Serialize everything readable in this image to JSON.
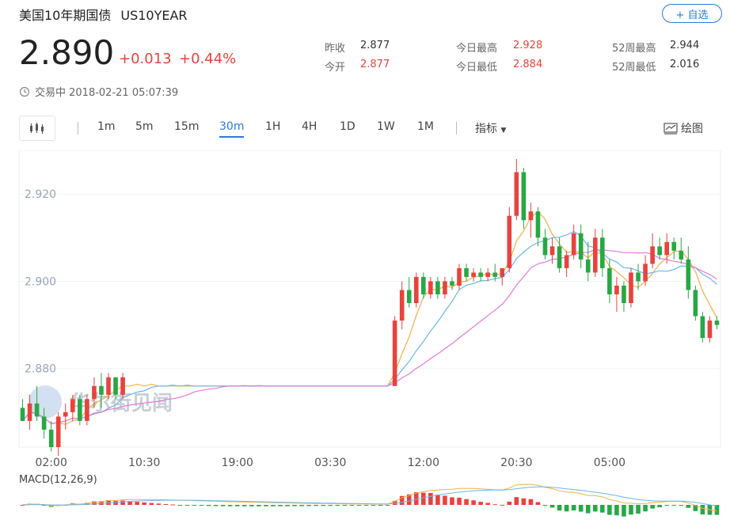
{
  "header": {
    "name": "美国10年期国债",
    "code": "US10YEAR",
    "add_label": "+ 自选",
    "price": "2.890",
    "change": "+0.013",
    "change_pct": "+0.44%",
    "status": "交易中 2018-02-21 05:07:39"
  },
  "stats": [
    {
      "label": "昨收",
      "value": "2.877",
      "color": "dark"
    },
    {
      "label": "今开",
      "value": "2.877",
      "color": "red"
    },
    {
      "label": "今日最高",
      "value": "2.928",
      "color": "red"
    },
    {
      "label": "今日最低",
      "value": "2.884",
      "color": "red"
    },
    {
      "label": "52周最高",
      "value": "2.944",
      "color": "dark"
    },
    {
      "label": "52周最低",
      "value": "2.016",
      "color": "dark"
    }
  ],
  "toolbar": {
    "periods": [
      "1m",
      "5m",
      "15m",
      "30m",
      "1H",
      "4H",
      "1D",
      "1W",
      "1M"
    ],
    "active_period": "30m",
    "indicators_label": "指标",
    "draw_label": "绘图"
  },
  "colors": {
    "up": "#e8433d",
    "down": "#27a844",
    "ma5": "#f0b04a",
    "ma10": "#6ab8e8",
    "ma20": "#e57ad8",
    "accent": "#2d7ad6"
  },
  "watermark": "华尔街见闻",
  "chart_data": {
    "type": "candlestick",
    "ylim": [
      2.862,
      2.93
    ],
    "yticks": [
      2.88,
      2.9,
      2.92
    ],
    "ytick_labels": [
      "2.880",
      "2.900",
      "2.920"
    ],
    "xticks": [
      {
        "index": 4,
        "label": "02:00"
      },
      {
        "index": 17,
        "label": "10:30"
      },
      {
        "index": 30,
        "label": "19:00"
      },
      {
        "index": 43,
        "label": "03:30"
      },
      {
        "index": 56,
        "label": "12:00"
      },
      {
        "index": 69,
        "label": "20:30"
      },
      {
        "index": 82,
        "label": "05:00"
      }
    ],
    "ohlc": [
      [
        2.871,
        2.873,
        2.868,
        2.868
      ],
      [
        2.868,
        2.874,
        2.866,
        2.872
      ],
      [
        2.872,
        2.876,
        2.868,
        2.869
      ],
      [
        2.869,
        2.871,
        2.864,
        2.866
      ],
      [
        2.866,
        2.868,
        2.861,
        2.862
      ],
      [
        2.862,
        2.87,
        2.86,
        2.869
      ],
      [
        2.869,
        2.872,
        2.866,
        2.87
      ],
      [
        2.87,
        2.874,
        2.868,
        2.873
      ],
      [
        2.873,
        2.874,
        2.867,
        2.868
      ],
      [
        2.868,
        2.874,
        2.867,
        2.873
      ],
      [
        2.873,
        2.878,
        2.871,
        2.876
      ],
      [
        2.876,
        2.879,
        2.871,
        2.874
      ],
      [
        2.874,
        2.879,
        2.873,
        2.878
      ],
      [
        2.878,
        2.878,
        2.873,
        2.874
      ],
      [
        2.874,
        2.879,
        2.873,
        2.878
      ],
      [
        2.876,
        2.876,
        2.876,
        2.876
      ],
      [
        2.876,
        2.876,
        2.876,
        2.876
      ],
      [
        2.876,
        2.876,
        2.876,
        2.876
      ],
      [
        2.876,
        2.876,
        2.876,
        2.876
      ],
      [
        2.876,
        2.876,
        2.876,
        2.876
      ],
      [
        2.876,
        2.876,
        2.876,
        2.876
      ],
      [
        2.876,
        2.876,
        2.876,
        2.876
      ],
      [
        2.876,
        2.876,
        2.876,
        2.876
      ],
      [
        2.876,
        2.876,
        2.876,
        2.876
      ],
      [
        2.876,
        2.876,
        2.876,
        2.876
      ],
      [
        2.876,
        2.876,
        2.876,
        2.876
      ],
      [
        2.876,
        2.876,
        2.876,
        2.876
      ],
      [
        2.876,
        2.876,
        2.876,
        2.876
      ],
      [
        2.876,
        2.876,
        2.876,
        2.876
      ],
      [
        2.876,
        2.876,
        2.876,
        2.876
      ],
      [
        2.876,
        2.876,
        2.876,
        2.876
      ],
      [
        2.876,
        2.876,
        2.876,
        2.876
      ],
      [
        2.876,
        2.876,
        2.876,
        2.876
      ],
      [
        2.876,
        2.876,
        2.876,
        2.876
      ],
      [
        2.876,
        2.876,
        2.876,
        2.876
      ],
      [
        2.876,
        2.876,
        2.876,
        2.876
      ],
      [
        2.876,
        2.876,
        2.876,
        2.876
      ],
      [
        2.876,
        2.876,
        2.876,
        2.876
      ],
      [
        2.876,
        2.876,
        2.876,
        2.876
      ],
      [
        2.876,
        2.876,
        2.876,
        2.876
      ],
      [
        2.876,
        2.876,
        2.876,
        2.876
      ],
      [
        2.876,
        2.876,
        2.876,
        2.876
      ],
      [
        2.876,
        2.876,
        2.876,
        2.876
      ],
      [
        2.876,
        2.876,
        2.876,
        2.876
      ],
      [
        2.876,
        2.876,
        2.876,
        2.876
      ],
      [
        2.876,
        2.876,
        2.876,
        2.876
      ],
      [
        2.876,
        2.876,
        2.876,
        2.876
      ],
      [
        2.876,
        2.876,
        2.876,
        2.876
      ],
      [
        2.876,
        2.876,
        2.876,
        2.876
      ],
      [
        2.876,
        2.876,
        2.876,
        2.876
      ],
      [
        2.876,
        2.876,
        2.876,
        2.876
      ],
      [
        2.876,
        2.876,
        2.876,
        2.876
      ],
      [
        2.876,
        2.892,
        2.876,
        2.891
      ],
      [
        2.891,
        2.9,
        2.889,
        2.898
      ],
      [
        2.898,
        2.901,
        2.894,
        2.895
      ],
      [
        2.895,
        2.902,
        2.894,
        2.901
      ],
      [
        2.901,
        2.902,
        2.896,
        2.897
      ],
      [
        2.897,
        2.901,
        2.896,
        2.9
      ],
      [
        2.9,
        2.901,
        2.896,
        2.897
      ],
      [
        2.897,
        2.901,
        2.896,
        2.9
      ],
      [
        2.9,
        2.901,
        2.898,
        2.899
      ],
      [
        2.899,
        2.904,
        2.898,
        2.903
      ],
      [
        2.903,
        2.904,
        2.9,
        2.901
      ],
      [
        2.901,
        2.903,
        2.9,
        2.902
      ],
      [
        2.902,
        2.903,
        2.9,
        2.901
      ],
      [
        2.901,
        2.903,
        2.9,
        2.902
      ],
      [
        2.902,
        2.904,
        2.9,
        2.901
      ],
      [
        2.901,
        2.903,
        2.899,
        2.903
      ],
      [
        2.903,
        2.917,
        2.902,
        2.915
      ],
      [
        2.915,
        2.928,
        2.914,
        2.925
      ],
      [
        2.925,
        2.926,
        2.912,
        2.914
      ],
      [
        2.914,
        2.918,
        2.91,
        2.916
      ],
      [
        2.916,
        2.917,
        2.908,
        2.91
      ],
      [
        2.91,
        2.912,
        2.905,
        2.906
      ],
      [
        2.906,
        2.91,
        2.904,
        2.908
      ],
      [
        2.908,
        2.91,
        2.902,
        2.903
      ],
      [
        2.903,
        2.907,
        2.901,
        2.906
      ],
      [
        2.906,
        2.913,
        2.905,
        2.911
      ],
      [
        2.911,
        2.913,
        2.903,
        2.905
      ],
      [
        2.905,
        2.909,
        2.9,
        2.902
      ],
      [
        2.902,
        2.912,
        2.901,
        2.91
      ],
      [
        2.91,
        2.912,
        2.901,
        2.903
      ],
      [
        2.903,
        2.905,
        2.895,
        2.897
      ],
      [
        2.897,
        2.901,
        2.893,
        2.899
      ],
      [
        2.899,
        2.9,
        2.893,
        2.895
      ],
      [
        2.895,
        2.903,
        2.894,
        2.902
      ],
      [
        2.902,
        2.904,
        2.898,
        2.9
      ],
      [
        2.9,
        2.906,
        2.899,
        2.904
      ],
      [
        2.904,
        2.911,
        2.903,
        2.908
      ],
      [
        2.908,
        2.91,
        2.905,
        2.906
      ],
      [
        2.906,
        2.911,
        2.904,
        2.909
      ],
      [
        2.909,
        2.91,
        2.905,
        2.907
      ],
      [
        2.907,
        2.91,
        2.904,
        2.905
      ],
      [
        2.905,
        2.908,
        2.896,
        2.898
      ],
      [
        2.898,
        2.899,
        2.891,
        2.892
      ],
      [
        2.892,
        2.893,
        2.886,
        2.887
      ],
      [
        2.887,
        2.892,
        2.886,
        2.891
      ],
      [
        2.891,
        2.892,
        2.889,
        2.89
      ]
    ],
    "indicator_label": "MACD(12,26,9)"
  }
}
